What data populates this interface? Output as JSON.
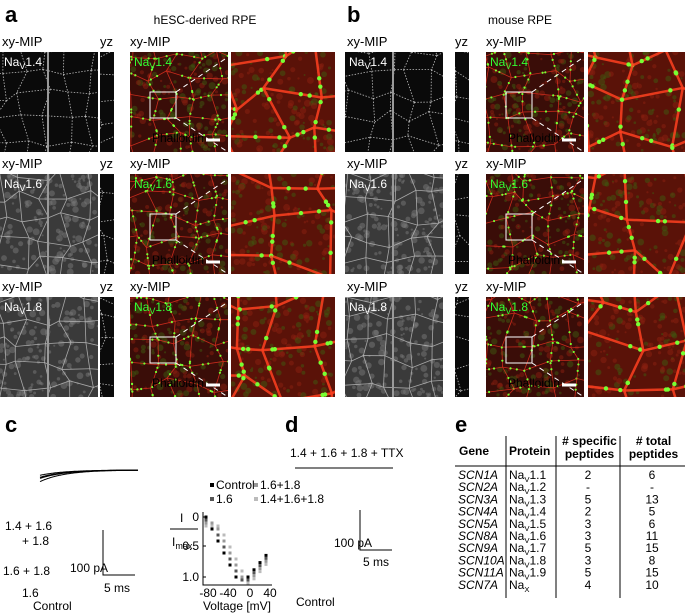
{
  "panels": [
    {
      "letter": "a",
      "title": "hESC-derived RPE",
      "rows": [
        {
          "left": "xy-MIP",
          "yz": "yz",
          "right": "xy-MIP",
          "channel": {
            "base": "Na",
            "sub": "V",
            "num": "1.4"
          },
          "stain": "Phalloidin"
        },
        {
          "left": "xy-MIP",
          "yz": "yz",
          "right": "xy-MIP",
          "channel": {
            "base": "Na",
            "sub": "V",
            "num": "1.6"
          },
          "stain": "Phalloidin"
        },
        {
          "left": "xy-MIP",
          "yz": "yz",
          "right": "xy-MIP",
          "channel": {
            "base": "Na",
            "sub": "V",
            "num": "1.8"
          },
          "stain": "Phalloidin"
        }
      ]
    },
    {
      "letter": "b",
      "title": "mouse RPE",
      "rows": [
        {
          "left": "xy-MIP",
          "yz": "yz",
          "right": "xy-MIP",
          "channel": {
            "base": "Na",
            "sub": "V",
            "num": "1.4"
          },
          "stain": "Phalloidin"
        },
        {
          "left": "xy-MIP",
          "yz": "yz",
          "right": "xy-MIP",
          "channel": {
            "base": "Na",
            "sub": "V",
            "num": "1.6"
          },
          "stain": "Phalloidin"
        },
        {
          "left": "xy-MIP",
          "yz": "yz",
          "right": "xy-MIP",
          "channel": {
            "base": "Na",
            "sub": "V",
            "num": "1.8"
          },
          "stain": "Phalloidin"
        }
      ]
    }
  ],
  "panel_c": {
    "letter": "c",
    "trace_labels": [
      "1.4 + 1.6",
      "+ 1.8",
      "1.6 + 1.8",
      "1.6",
      "Control"
    ],
    "scale_y": "100 pA",
    "scale_x": "5 ms",
    "ylabel": {
      "num": "I",
      "den": {
        "base": "I",
        "sub": "max"
      }
    },
    "yticks": [
      "0",
      "0.5",
      "1.0"
    ],
    "xticks": [
      "-80",
      "-40",
      "0",
      "40"
    ],
    "xlabel": "Voltage [mV]",
    "legend": [
      "Control",
      "1.6",
      "1.6+1.8",
      "1.4+1.6+1.8"
    ]
  },
  "panel_d": {
    "letter": "d",
    "label": "1.4 + 1.6 + 1.8 + TTX",
    "scale_y": "100 pA",
    "scale_x": "5 ms",
    "control": "Control"
  },
  "panel_e": {
    "letter": "e",
    "headers": [
      [
        "Gene"
      ],
      [
        "Protein"
      ],
      [
        "# specific",
        "peptides"
      ],
      [
        "# total",
        "peptides"
      ]
    ],
    "rows": [
      [
        "SCN1A",
        {
          "base": "Na",
          "sub": "V",
          "num": "1.1"
        },
        2,
        6
      ],
      [
        "SCN2A",
        {
          "base": "Na",
          "sub": "V",
          "num": "1.2"
        },
        "-",
        "-"
      ],
      [
        "SCN3A",
        {
          "base": "Na",
          "sub": "V",
          "num": "1.3"
        },
        5,
        13
      ],
      [
        "SCN4A",
        {
          "base": "Na",
          "sub": "V",
          "num": "1.4"
        },
        2,
        5
      ],
      [
        "SCN5A",
        {
          "base": "Na",
          "sub": "V",
          "num": "1.5"
        },
        3,
        6
      ],
      [
        "SCN8A",
        {
          "base": "Na",
          "sub": "V",
          "num": "1.6"
        },
        3,
        11
      ],
      [
        "SCN9A",
        {
          "base": "Na",
          "sub": "V",
          "num": "1.7"
        },
        5,
        15
      ],
      [
        "SCN10A",
        {
          "base": "Na",
          "sub": "V",
          "num": "1.8"
        },
        3,
        8
      ],
      [
        "SCN11A",
        {
          "base": "Na",
          "sub": "V",
          "num": "1.9"
        },
        5,
        15
      ],
      [
        "SCN7A",
        {
          "base": "Na",
          "sub": "X"
        },
        4,
        10
      ]
    ]
  }
}
